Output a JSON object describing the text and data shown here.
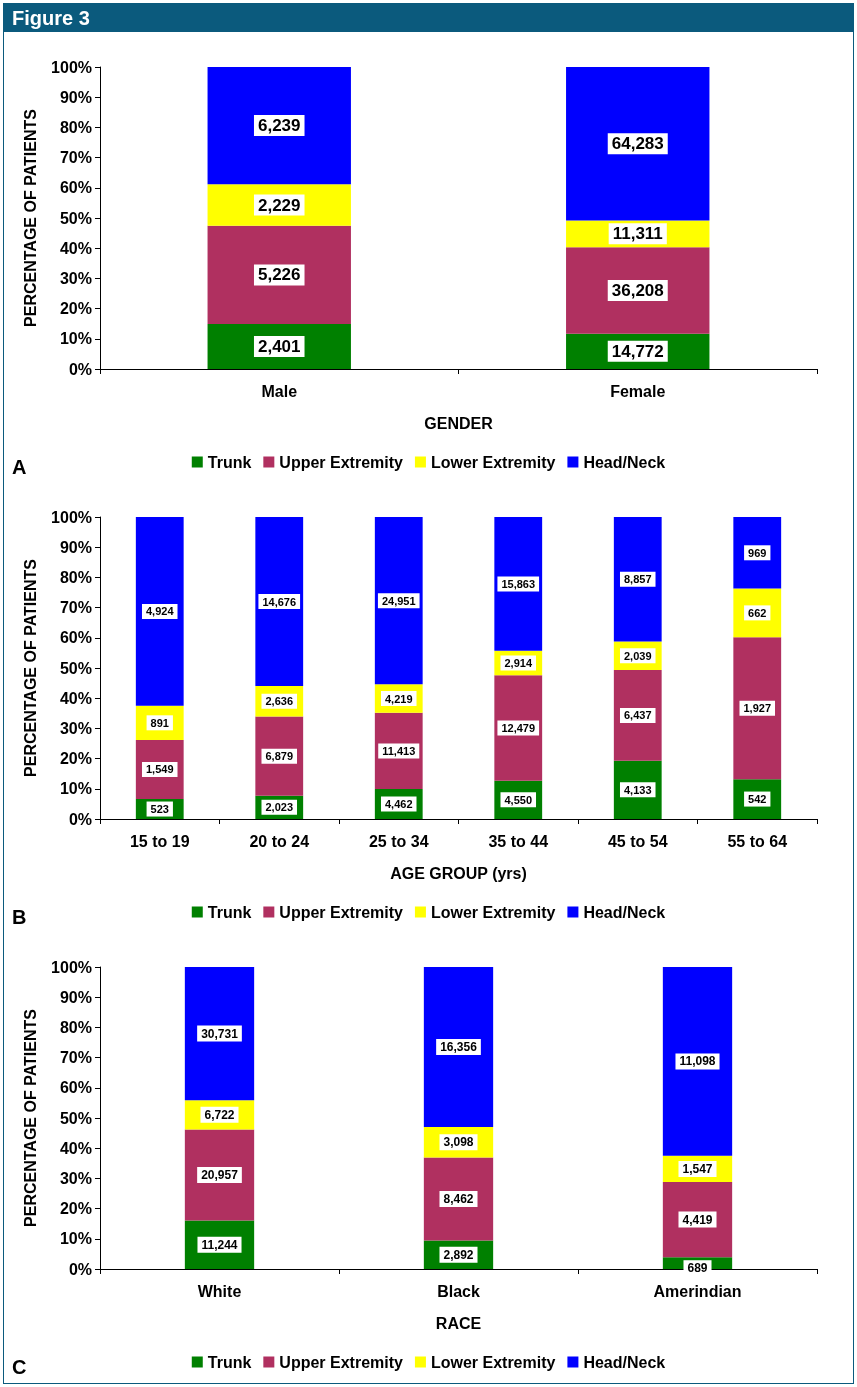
{
  "chart_data": [
    {
      "type": "bar",
      "stacked": true,
      "title": "Figure 3",
      "xlabel": "GENDER",
      "ylabel": "PERCENTAGE OF PATIENTS",
      "legend": "bottom",
      "grid": false,
      "annotations": [
        "A",
        "2,401",
        "5,226",
        "2,229",
        "6,239",
        "14,772",
        "36,208",
        "11,311",
        "64,283"
      ],
      "categories": [
        "Male",
        "Female"
      ],
      "ylim": [
        0,
        100
      ],
      "yticks": [
        {
          "value": 0,
          "label": "0%"
        },
        {
          "value": 10,
          "label": "10%"
        },
        {
          "value": 20,
          "label": "20%"
        },
        {
          "value": 30,
          "label": "30%"
        },
        {
          "value": 40,
          "label": "40%"
        },
        {
          "value": 50,
          "label": "50%"
        },
        {
          "value": 60,
          "label": "60%"
        },
        {
          "value": 70,
          "label": "70%"
        },
        {
          "value": 80,
          "label": "80%"
        },
        {
          "value": 90,
          "label": "90%"
        },
        {
          "value": 100,
          "label": "100%"
        }
      ],
      "series": [
        {
          "name": "Trunk",
          "color": "#008000",
          "values": [
            14.9,
            11.7
          ]
        },
        {
          "name": "Upper Extremity",
          "color": "#b03060",
          "values": [
            32.5,
            28.6
          ]
        },
        {
          "name": "Lower Extremity",
          "color": "#ffff00",
          "values": [
            13.8,
            8.9
          ]
        },
        {
          "name": "Head/Neck",
          "color": "#0000ff",
          "values": [
            38.8,
            50.8
          ]
        }
      ]
    },
    {
      "type": "bar",
      "stacked": true,
      "xlabel": "AGE GROUP (yrs)",
      "ylabel": "PERCENTAGE OF PATIENTS",
      "legend": "bottom",
      "grid": false,
      "annotations": [
        "B",
        "523",
        "1,549",
        "891",
        "4,924",
        "2,023",
        "6,879",
        "2,636",
        "14,676",
        "4,462",
        "11,413",
        "4,219",
        "24,951",
        "4,550",
        "12,479",
        "2,914",
        "15,863",
        "4,133",
        "6,437",
        "2,039",
        "8,857",
        "542",
        "1,927",
        "662",
        "969"
      ],
      "categories": [
        "15 to 19",
        "20 to 24",
        "25 to 34",
        "35 to 44",
        "45 to 54",
        "55 to 64"
      ],
      "ylim": [
        0,
        100
      ],
      "yticks": [
        {
          "value": 0,
          "label": "0%"
        },
        {
          "value": 10,
          "label": "10%"
        },
        {
          "value": 20,
          "label": "20%"
        },
        {
          "value": 30,
          "label": "30%"
        },
        {
          "value": 40,
          "label": "40%"
        },
        {
          "value": 50,
          "label": "50%"
        },
        {
          "value": 60,
          "label": "60%"
        },
        {
          "value": 70,
          "label": "70%"
        },
        {
          "value": 80,
          "label": "80%"
        },
        {
          "value": 90,
          "label": "90%"
        },
        {
          "value": 100,
          "label": "100%"
        }
      ],
      "series": [
        {
          "name": "Trunk",
          "color": "#008000",
          "values": [
            6.6,
            7.7,
            9.9,
            12.7,
            19.3,
            13.2
          ]
        },
        {
          "name": "Upper Extremity",
          "color": "#b03060",
          "values": [
            19.6,
            26.2,
            25.3,
            34.9,
            30.0,
            47.0
          ]
        },
        {
          "name": "Lower Extremity",
          "color": "#ffff00",
          "values": [
            11.3,
            10.1,
            9.4,
            8.1,
            9.5,
            16.1
          ]
        },
        {
          "name": "Head/Neck",
          "color": "#0000ff",
          "values": [
            62.5,
            56.0,
            55.4,
            44.3,
            41.2,
            23.7
          ]
        }
      ]
    },
    {
      "type": "bar",
      "stacked": true,
      "xlabel": "RACE",
      "ylabel": "PERCENTAGE OF PATIENTS",
      "legend": "bottom",
      "grid": false,
      "annotations": [
        "C",
        "11,244",
        "20,957",
        "6,722",
        "30,731",
        "2,892",
        "8,462",
        "3,098",
        "16,356",
        "689",
        "4,419",
        "1,547",
        "11,098"
      ],
      "categories": [
        "White",
        "Black",
        "Amerindian"
      ],
      "ylim": [
        0,
        100
      ],
      "yticks": [
        {
          "value": 0,
          "label": "0%"
        },
        {
          "value": 10,
          "label": "10%"
        },
        {
          "value": 20,
          "label": "20%"
        },
        {
          "value": 30,
          "label": "30%"
        },
        {
          "value": 40,
          "label": "40%"
        },
        {
          "value": 50,
          "label": "50%"
        },
        {
          "value": 60,
          "label": "60%"
        },
        {
          "value": 70,
          "label": "70%"
        },
        {
          "value": 80,
          "label": "80%"
        },
        {
          "value": 90,
          "label": "90%"
        },
        {
          "value": 100,
          "label": "100%"
        }
      ],
      "series": [
        {
          "name": "Trunk",
          "color": "#008000",
          "values": [
            16.1,
            9.4,
            3.9
          ]
        },
        {
          "name": "Upper Extremity",
          "color": "#b03060",
          "values": [
            30.1,
            27.5,
            24.9
          ]
        },
        {
          "name": "Lower Extremity",
          "color": "#ffff00",
          "values": [
            9.7,
            10.1,
            8.7
          ]
        },
        {
          "name": "Head/Neck",
          "color": "#0000ff",
          "values": [
            44.1,
            53.0,
            62.5
          ]
        }
      ]
    }
  ]
}
